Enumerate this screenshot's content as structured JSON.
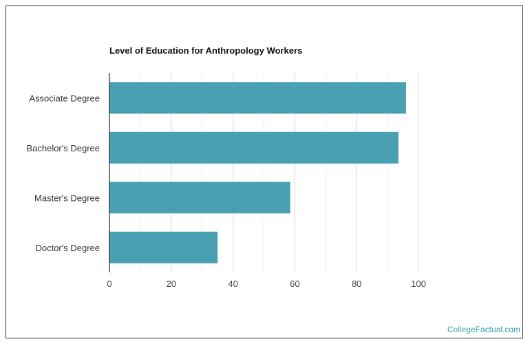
{
  "chart_data": {
    "type": "bar",
    "orientation": "horizontal",
    "title": "Level of Education for Anthropology Workers",
    "categories": [
      "Associate Degree",
      "Bachelor's Degree",
      "Master's Degree",
      "Doctor's Degree"
    ],
    "values": [
      96,
      93.5,
      58.5,
      35
    ],
    "xlabel": "",
    "ylabel": "",
    "xlim": [
      0,
      100
    ],
    "xticks": [
      0,
      20,
      40,
      60,
      80,
      100
    ],
    "grid": true,
    "bar_color": "#4aa0b3",
    "grid_color": "#d9d9d9"
  },
  "watermark": {
    "text": "CollegeFactual.com",
    "color": "#3aa1b4"
  }
}
